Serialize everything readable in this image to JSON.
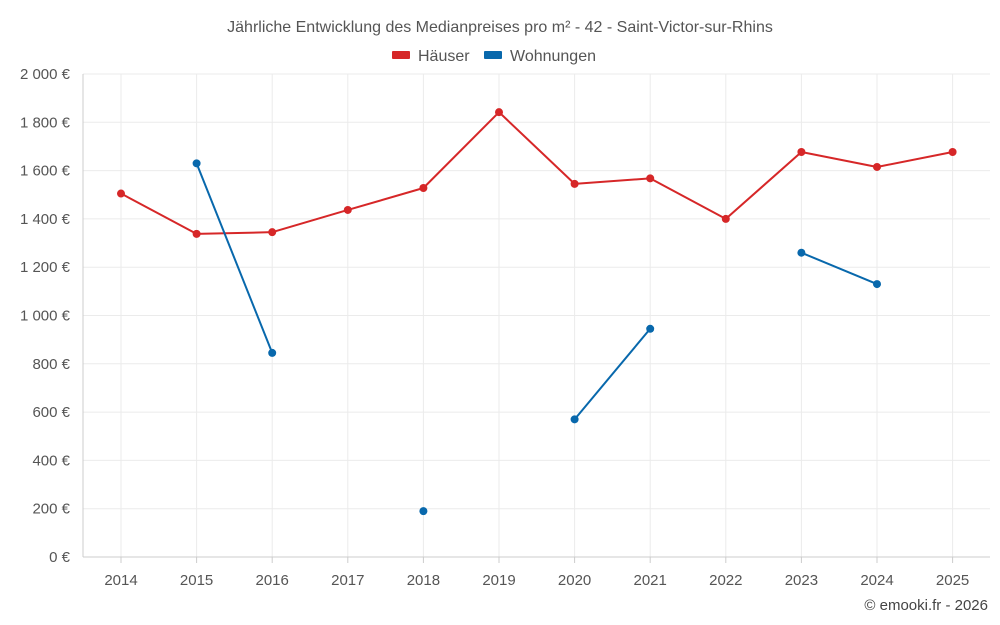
{
  "chart_data": {
    "type": "line",
    "title": "Jährliche Entwicklung des Medianpreises pro m² - 42 - Saint-Victor-sur-Rhins",
    "xlabel": "",
    "ylabel": "",
    "categories": [
      "2014",
      "2015",
      "2016",
      "2017",
      "2018",
      "2019",
      "2020",
      "2021",
      "2022",
      "2023",
      "2024",
      "2025"
    ],
    "ylim": [
      0,
      2000
    ],
    "y_ticks": [
      0,
      200,
      400,
      600,
      800,
      1000,
      1200,
      1400,
      1600,
      1800,
      2000
    ],
    "y_tick_labels": [
      "0 €",
      "200 €",
      "400 €",
      "600 €",
      "800 €",
      "1 000 €",
      "1 200 €",
      "1 400 €",
      "1 600 €",
      "1 800 €",
      "2 000 €"
    ],
    "grid": true,
    "legend_position": "top-center",
    "series": [
      {
        "name": "Häuser",
        "color": "#d62728",
        "values": [
          1505,
          1338,
          1345,
          1437,
          1528,
          1842,
          1545,
          1568,
          1400,
          1677,
          1615,
          1677
        ]
      },
      {
        "name": "Wohnungen",
        "color": "#0868ac",
        "values": [
          null,
          1630,
          845,
          null,
          190,
          null,
          570,
          945,
          null,
          1260,
          1130,
          null
        ]
      }
    ]
  },
  "credit": "© emooki.fr - 2026"
}
